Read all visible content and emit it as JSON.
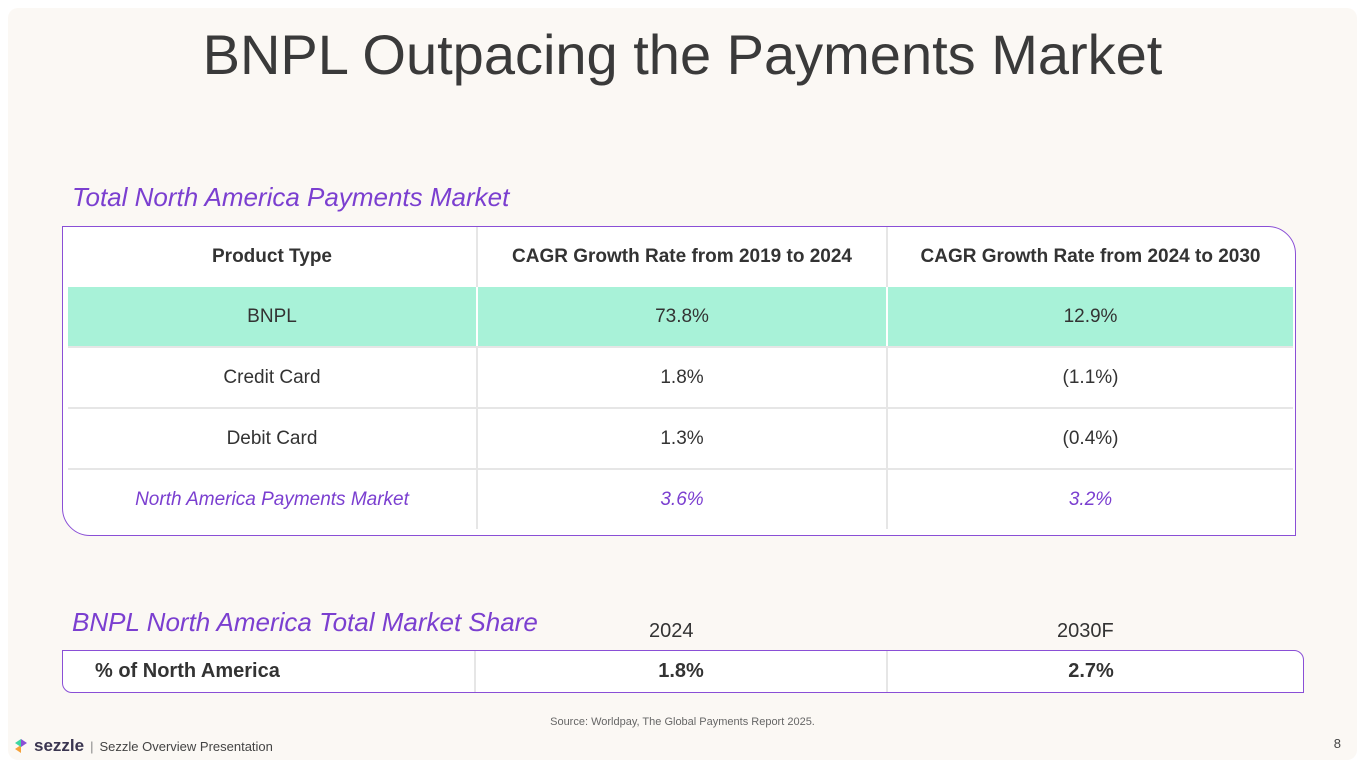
{
  "title": "BNPL Outpacing the Payments Market",
  "section1": "Total North America Payments Market",
  "table": {
    "headers": [
      "Product Type",
      "CAGR Growth Rate from 2019 to 2024",
      "CAGR Growth Rate from 2024 to 2030"
    ],
    "rows": [
      [
        "BNPL",
        "73.8%",
        "12.9%"
      ],
      [
        "Credit Card",
        "1.8%",
        "(1.1%)"
      ],
      [
        "Debit Card",
        "1.3%",
        "(0.4%)"
      ],
      [
        "North America Payments Market",
        "3.6%",
        "3.2%"
      ]
    ]
  },
  "section2": "BNPL North America Total Market Share",
  "share": {
    "years": [
      "2024",
      "2030F"
    ],
    "label": "% of North America",
    "values": [
      "1.8%",
      "2.7%"
    ]
  },
  "source": "Source: Worldpay, The Global Payments Report 2025.",
  "footer": {
    "logo": "sezzle",
    "separator": "|",
    "text": "Sezzle Overview Presentation",
    "page": "8"
  },
  "colors": {
    "accent": "#7b3fd0",
    "highlight": "#a8f2d8"
  }
}
